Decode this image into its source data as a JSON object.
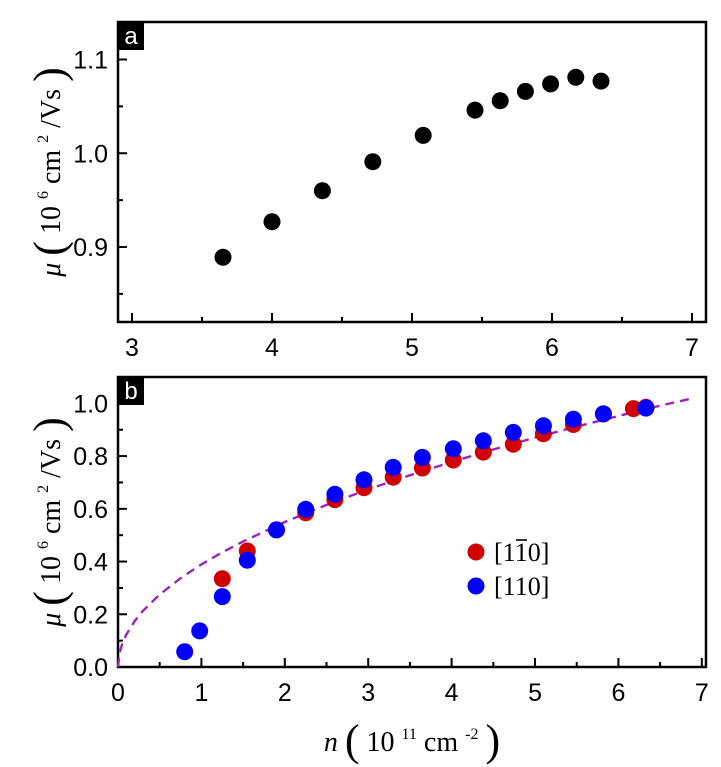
{
  "chart_data": [
    {
      "panel": "a",
      "type": "scatter",
      "xlim": [
        2.9,
        7.1
      ],
      "ylim": [
        0.82,
        1.14
      ],
      "xticks": [
        3,
        4,
        5,
        6,
        7
      ],
      "yticks": [
        0.9,
        1.0,
        1.1
      ],
      "xtick_labels": [
        "3",
        "4",
        "5",
        "6",
        "7"
      ],
      "ytick_labels": [
        "0.9",
        "1.0",
        "1.1"
      ],
      "ylabel": {
        "symbol": "μ",
        "prefix": "10",
        "exp": "6",
        "unit": " cm",
        "unit_exp": "2",
        "suffix": "/Vs"
      },
      "series": [
        {
          "name": "data",
          "color": "#000000",
          "x": [
            3.65,
            4.0,
            4.36,
            4.72,
            5.08,
            5.45,
            5.63,
            5.81,
            5.99,
            6.17,
            6.35
          ],
          "y": [
            0.889,
            0.927,
            0.96,
            0.991,
            1.019,
            1.046,
            1.056,
            1.066,
            1.074,
            1.081,
            1.077
          ]
        }
      ]
    },
    {
      "panel": "b",
      "type": "scatter",
      "xlim": [
        0,
        7.05
      ],
      "ylim": [
        0,
        1.1
      ],
      "xticks": [
        0,
        1,
        2,
        3,
        4,
        5,
        6,
        7
      ],
      "yticks": [
        0.0,
        0.2,
        0.4,
        0.6,
        0.8,
        1.0
      ],
      "xtick_labels": [
        "0",
        "1",
        "2",
        "3",
        "4",
        "5",
        "6",
        "7"
      ],
      "ytick_labels": [
        "0.0",
        "0.2",
        "0.4",
        "0.6",
        "0.8",
        "1.0"
      ],
      "xlabel": {
        "symbol": "n",
        "prefix": "10",
        "exp": "11",
        "unit": " cm",
        "unit_exp": "-2"
      },
      "ylabel": {
        "symbol": "μ",
        "prefix": "10",
        "exp": "6",
        "unit": " cm",
        "unit_exp": "2",
        "suffix": "/Vs"
      },
      "legend": {
        "placement": "center-right",
        "entries": [
          {
            "label_parts": [
              "[1",
              "1",
              "0]"
            ],
            "overbar_index": 1,
            "color": "#d10000"
          },
          {
            "label_parts": [
              "[110]"
            ],
            "overbar_index": -1,
            "color": "#0000ff"
          }
        ]
      },
      "series": [
        {
          "name": "[1-10]",
          "color": "#d10000",
          "x": [
            1.25,
            1.55,
            1.9,
            2.25,
            2.6,
            2.95,
            3.3,
            3.65,
            4.02,
            4.38,
            4.74,
            5.1,
            5.46,
            5.82,
            6.18,
            6.33
          ],
          "y": [
            0.335,
            0.44,
            0.52,
            0.585,
            0.635,
            0.68,
            0.72,
            0.755,
            0.785,
            0.815,
            0.845,
            0.885,
            0.92,
            0.96,
            0.98,
            0.985
          ]
        },
        {
          "name": "[110]",
          "color": "#0000ff",
          "x": [
            0.8,
            0.98,
            1.25,
            1.55,
            1.9,
            2.25,
            2.6,
            2.95,
            3.3,
            3.65,
            4.02,
            4.38,
            4.74,
            5.1,
            5.46,
            5.82,
            6.33
          ],
          "y": [
            0.058,
            0.137,
            0.267,
            0.405,
            0.52,
            0.598,
            0.655,
            0.71,
            0.757,
            0.795,
            0.828,
            0.858,
            0.89,
            0.915,
            0.94,
            0.96,
            0.982
          ]
        }
      ],
      "fit_curve": {
        "name": "dashed fit",
        "color": "#a020c0",
        "style": "dashed",
        "x": [
          0.0,
          0.02,
          0.05,
          0.1,
          0.2,
          0.3,
          0.5,
          0.75,
          1.0,
          1.25,
          1.5,
          2.0,
          2.5,
          3.0,
          3.5,
          4.0,
          4.5,
          5.0,
          5.5,
          6.0,
          6.5,
          6.9
        ],
        "y": [
          0.0,
          0.055,
          0.087,
          0.123,
          0.174,
          0.213,
          0.275,
          0.337,
          0.389,
          0.435,
          0.476,
          0.55,
          0.615,
          0.674,
          0.727,
          0.778,
          0.825,
          0.87,
          0.912,
          0.952,
          0.991,
          1.02
        ]
      }
    }
  ]
}
